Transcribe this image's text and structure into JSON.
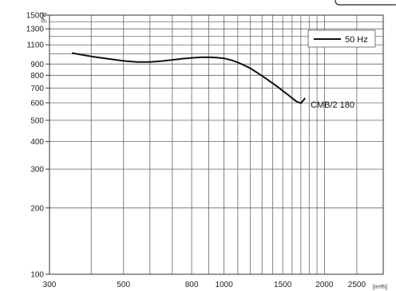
{
  "chart_data": {
    "type": "line",
    "x_scale": "log",
    "y_scale": "log",
    "xlim": [
      300,
      3000
    ],
    "ylim": [
      100,
      1500
    ],
    "grid": true,
    "xlabel": "[m³/h]",
    "ylabel": "[Pa]",
    "x_ticks": [
      300,
      500,
      800,
      1000,
      1500,
      2000,
      2500
    ],
    "x_grid": [
      300,
      400,
      500,
      600,
      700,
      800,
      900,
      1000,
      1100,
      1200,
      1300,
      1400,
      1500,
      1600,
      1700,
      1800,
      1900,
      2000,
      2500,
      3000
    ],
    "y_ticks": [
      100,
      200,
      300,
      400,
      500,
      600,
      700,
      800,
      900,
      1100,
      1300,
      1500
    ],
    "y_grid": [
      100,
      200,
      300,
      400,
      500,
      600,
      700,
      800,
      900,
      1000,
      1100,
      1200,
      1300,
      1400,
      1500
    ],
    "legend": {
      "placement": "top-right",
      "entries": [
        "50 Hz"
      ]
    },
    "series": [
      {
        "name": "CMB/2 180",
        "x": [
          350,
          400,
          450,
          500,
          550,
          600,
          650,
          700,
          750,
          800,
          850,
          900,
          950,
          1000,
          1050,
          1100,
          1150,
          1200,
          1250,
          1300,
          1350,
          1400,
          1450,
          1500,
          1550,
          1600,
          1650,
          1700,
          1750
        ],
        "y": [
          1010,
          975,
          950,
          930,
          920,
          920,
          928,
          940,
          952,
          960,
          965,
          966,
          962,
          955,
          938,
          915,
          888,
          860,
          827,
          795,
          765,
          735,
          708,
          680,
          655,
          630,
          608,
          598,
          630
        ]
      }
    ],
    "series_label": "CMB/2 180"
  }
}
